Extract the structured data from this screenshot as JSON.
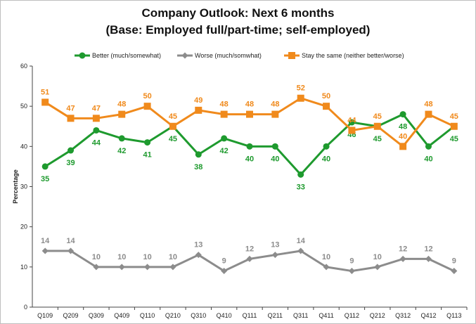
{
  "chart_data": {
    "type": "line",
    "title": "Company Outlook: Next 6 months",
    "subtitle": "(Base: Employed full/part-time; self-employed)",
    "xlabel": "",
    "ylabel": "Percentage",
    "ylim": [
      0,
      60
    ],
    "yticks": [
      0,
      10,
      20,
      30,
      40,
      50,
      60
    ],
    "grid": false,
    "legend_position": "top",
    "categories": [
      "Q109",
      "Q209",
      "Q309",
      "Q409",
      "Q110",
      "Q210",
      "Q310",
      "Q410",
      "Q111",
      "Q211",
      "Q311",
      "Q411",
      "Q112",
      "Q212",
      "Q312",
      "Q412",
      "Q113"
    ],
    "series": [
      {
        "name": "Better (much/somewhat)",
        "color": "#1e9a2e",
        "marker": "circle",
        "label_position": "below",
        "values": [
          35,
          39,
          44,
          42,
          41,
          45,
          38,
          42,
          40,
          40,
          33,
          40,
          46,
          45,
          48,
          40,
          45
        ]
      },
      {
        "name": "Worse (much/somwhat)",
        "color": "#8c8c8c",
        "marker": "diamond",
        "label_position": "above",
        "values": [
          14,
          14,
          10,
          10,
          10,
          10,
          13,
          9,
          12,
          13,
          14,
          10,
          9,
          10,
          12,
          12,
          9
        ]
      },
      {
        "name": "Stay the same (neither better/worse)",
        "color": "#f08a1c",
        "marker": "square",
        "label_position": "above",
        "values": [
          51,
          47,
          47,
          48,
          50,
          45,
          49,
          48,
          48,
          48,
          52,
          50,
          44,
          45,
          40,
          48,
          45
        ]
      }
    ]
  }
}
